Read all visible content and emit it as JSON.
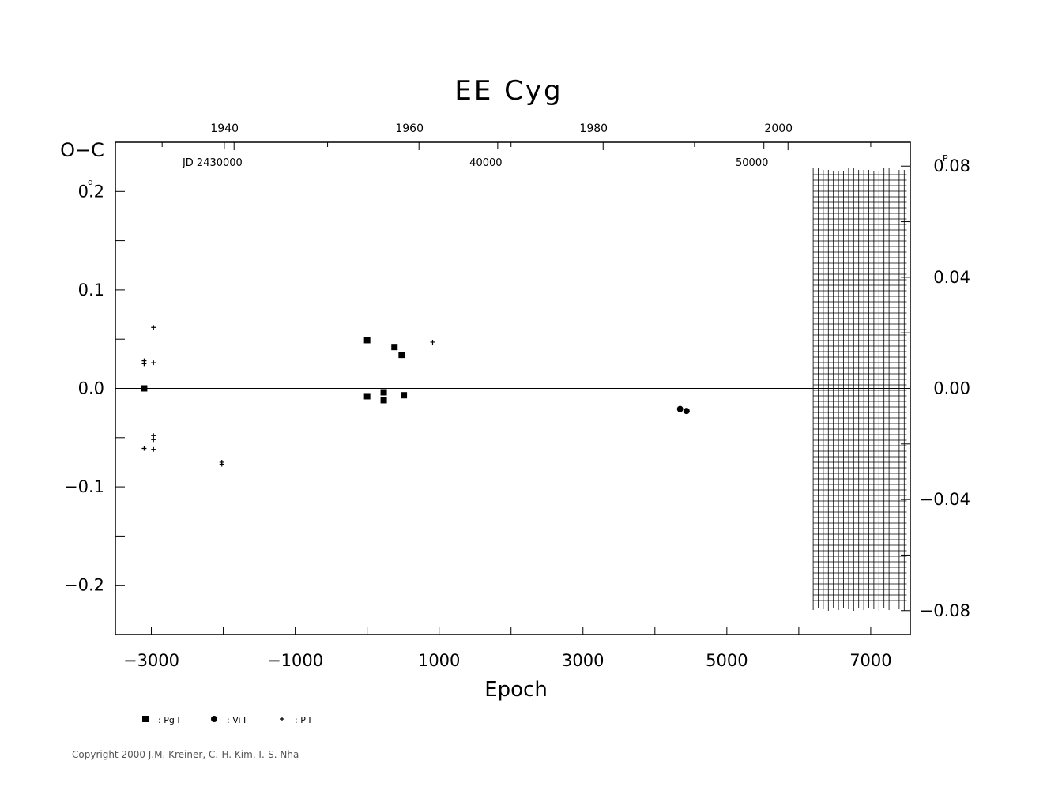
{
  "chart_data": {
    "type": "scatter",
    "title": "EE Cyg",
    "xlabel": "Epoch",
    "ylabel": "O−C",
    "y_unit_left": "d",
    "y_unit_right": "P",
    "xlim": [
      -3500,
      7550
    ],
    "ylim": [
      -0.25,
      0.25
    ],
    "right_ylim": [
      -0.0886,
      0.0886
    ],
    "x_ticks": [
      -3000,
      -1000,
      1000,
      3000,
      5000,
      7000
    ],
    "x_tick_labels": [
      "−3000",
      "−1000",
      "1000",
      "3000",
      "5000",
      "7000"
    ],
    "y_ticks": [
      0.2,
      0.1,
      0.0,
      -0.1,
      -0.2
    ],
    "y_tick_labels": [
      "0.2",
      "0.1",
      "0.0",
      "−0.1",
      "−0.2"
    ],
    "right_ticks": [
      0.08,
      0.04,
      0.0,
      -0.04,
      -0.08
    ],
    "right_tick_labels": [
      "0.08",
      "0.04",
      "0.00",
      "−0.04",
      "−0.08"
    ],
    "top_year_ticks": [
      {
        "x": -1850,
        "label": "1940"
      },
      {
        "x": 720,
        "label": "1960"
      },
      {
        "x": 3280,
        "label": "1980"
      },
      {
        "x": 5850,
        "label": "2000"
      }
    ],
    "top_jd_ticks": [
      {
        "x": -2150,
        "label": "JD 2430000"
      },
      {
        "x": 1650,
        "label": "40000"
      },
      {
        "x": 5350,
        "label": "50000"
      }
    ],
    "grid_region_x": [
      6200,
      7500
    ],
    "series": [
      {
        "name": "Pg",
        "marker": "square",
        "points": [
          [
            -3100,
            0.0
          ],
          [
            0,
            0.049
          ],
          [
            0,
            -0.008
          ],
          [
            230,
            -0.004
          ],
          [
            230,
            -0.012
          ],
          [
            380,
            0.042
          ],
          [
            480,
            0.034
          ],
          [
            510,
            -0.007
          ]
        ]
      },
      {
        "name": "Vi",
        "marker": "circle",
        "points": [
          [
            4350,
            -0.021
          ],
          [
            4440,
            -0.023
          ]
        ]
      },
      {
        "name": "P",
        "marker": "plus",
        "points": [
          [
            -3100,
            0.028
          ],
          [
            -3100,
            0.025
          ],
          [
            -3100,
            -0.061
          ],
          [
            -2970,
            0.062
          ],
          [
            -2970,
            0.026
          ],
          [
            -2970,
            -0.048
          ],
          [
            -2970,
            -0.052
          ],
          [
            -2970,
            -0.062
          ],
          [
            -2020,
            -0.075
          ],
          [
            -2020,
            -0.077
          ],
          [
            910,
            0.047
          ]
        ]
      }
    ]
  },
  "legend": [
    {
      "marker": "square",
      "label": ": Pg I"
    },
    {
      "marker": "circle",
      "label": ": Vi I"
    },
    {
      "marker": "plus",
      "label": ": P I"
    }
  ],
  "copyright": "Copyright 2000 J.M. Kreiner, C.-H. Kim, I.-S. Nha"
}
